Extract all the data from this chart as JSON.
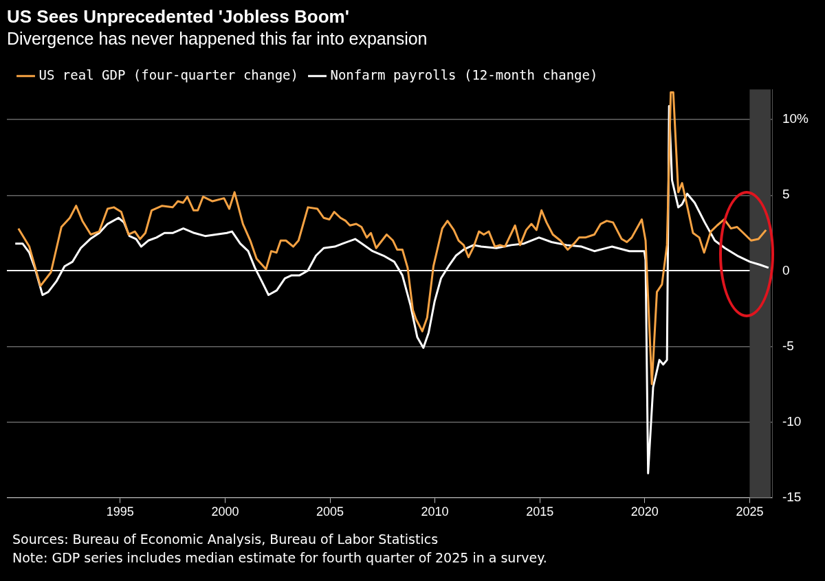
{
  "chart_data": {
    "type": "line",
    "title": "US Sees Unprecedented 'Jobless Boom'",
    "subtitle": "Divergence has never happened this far into expansion",
    "series": [
      {
        "name": "US real GDP (four-quarter change)",
        "color": "#f5a243",
        "x": [
          1990.15,
          1990.67,
          1991.2,
          1991.7,
          1992.2,
          1992.6,
          1992.9,
          1993.2,
          1993.6,
          1994.0,
          1994.4,
          1994.7,
          1995.05,
          1995.4,
          1995.7,
          1995.95,
          1996.2,
          1996.5,
          1997.0,
          1997.5,
          1997.75,
          1998.0,
          1998.2,
          1998.5,
          1998.7,
          1998.95,
          1999.4,
          1999.95,
          2000.2,
          2000.45,
          2000.85,
          2001.2,
          2001.5,
          2001.95,
          2002.2,
          2002.45,
          2002.65,
          2002.9,
          2003.25,
          2003.5,
          2003.95,
          2004.4,
          2004.7,
          2004.97,
          2005.2,
          2005.5,
          2005.75,
          2005.95,
          2006.25,
          2006.5,
          2006.75,
          2006.95,
          2007.2,
          2007.7,
          2008.0,
          2008.2,
          2008.45,
          2008.7,
          2008.95,
          2009.1,
          2009.4,
          2009.63,
          2009.93,
          2010.35,
          2010.6,
          2010.9,
          2011.13,
          2011.37,
          2011.6,
          2011.85,
          2012.1,
          2012.33,
          2012.57,
          2012.86,
          2013.1,
          2013.34,
          2013.82,
          2014.06,
          2014.35,
          2014.6,
          2014.84,
          2015.08,
          2015.32,
          2015.62,
          2015.98,
          2016.33,
          2016.63,
          2016.87,
          2017.17,
          2017.6,
          2017.9,
          2018.19,
          2018.49,
          2018.9,
          2019.15,
          2019.38,
          2019.86,
          2020.04,
          2020.34,
          2020.58,
          2020.82,
          2021.06,
          2021.24,
          2021.36,
          2021.6,
          2021.78,
          2022.02,
          2022.3,
          2022.6,
          2022.83,
          2023.15,
          2023.45,
          2023.79,
          2024.11,
          2024.4,
          2024.7,
          2025.07,
          2025.42,
          2025.78
        ],
        "values": [
          2.8,
          1.6,
          -1.0,
          -0.1,
          2.9,
          3.5,
          4.3,
          3.3,
          2.4,
          2.6,
          4.1,
          4.2,
          3.9,
          2.4,
          2.6,
          2.1,
          2.5,
          4.0,
          4.3,
          4.2,
          4.6,
          4.5,
          4.9,
          4.0,
          4.0,
          4.9,
          4.6,
          4.8,
          4.1,
          5.2,
          3.1,
          2.0,
          0.8,
          0.1,
          1.3,
          1.2,
          2.0,
          2.0,
          1.6,
          2.0,
          4.2,
          4.1,
          3.5,
          3.4,
          3.9,
          3.5,
          3.3,
          3.0,
          3.1,
          2.9,
          2.2,
          2.5,
          1.5,
          2.4,
          2.0,
          1.4,
          1.4,
          0.2,
          -2.6,
          -3.2,
          -4.0,
          -3.1,
          0.3,
          2.8,
          3.3,
          2.7,
          2.0,
          1.7,
          0.9,
          1.6,
          2.6,
          2.4,
          2.6,
          1.6,
          1.7,
          1.6,
          3.0,
          1.7,
          2.7,
          3.1,
          2.7,
          4.0,
          3.2,
          2.4,
          2.0,
          1.4,
          1.8,
          2.2,
          2.2,
          2.4,
          3.1,
          3.3,
          3.2,
          2.1,
          1.9,
          2.2,
          3.4,
          2.0,
          -7.5,
          -1.4,
          -0.9,
          1.7,
          11.8,
          11.8,
          5.2,
          5.8,
          4.3,
          2.5,
          2.2,
          1.2,
          2.6,
          3.0,
          3.4,
          2.8,
          2.9,
          2.5,
          2.0,
          2.1,
          2.7
        ]
      },
      {
        "name": "Nonfarm payrolls (12-month change)",
        "color": "#ffffff",
        "x": [
          1990.0,
          1990.35,
          1990.67,
          1990.93,
          1991.3,
          1991.57,
          1991.96,
          1992.35,
          1992.73,
          1993.12,
          1993.57,
          1994.0,
          1994.4,
          1994.92,
          1995.18,
          1995.44,
          1995.76,
          1996.0,
          1996.34,
          1996.73,
          1997.11,
          1997.5,
          1998.01,
          1998.53,
          1999.05,
          1999.56,
          2000.08,
          2000.33,
          2000.72,
          2001.1,
          2001.42,
          2001.75,
          2002.07,
          2002.46,
          2002.85,
          2003.17,
          2003.55,
          2003.94,
          2004.33,
          2004.7,
          2005.23,
          2005.61,
          2006.2,
          2006.52,
          2007.03,
          2007.55,
          2008.06,
          2008.45,
          2008.84,
          2009.16,
          2009.45,
          2009.7,
          2009.99,
          2010.29,
          2010.65,
          2011.0,
          2011.37,
          2011.84,
          2012.2,
          2012.93,
          2013.64,
          2014.24,
          2014.96,
          2015.56,
          2016.28,
          2016.99,
          2017.6,
          2018.43,
          2019.27,
          2019.98,
          2020.04,
          2020.16,
          2020.4,
          2020.7,
          2020.88,
          2021.06,
          2021.16,
          2021.3,
          2021.6,
          2021.78,
          2022.02,
          2022.38,
          2022.86,
          2023.34,
          2023.82,
          2024.41,
          2025.01,
          2025.49,
          2025.9
        ],
        "values": [
          1.8,
          1.8,
          1.2,
          0.2,
          -1.6,
          -1.4,
          -0.7,
          0.3,
          0.6,
          1.5,
          2.1,
          2.5,
          3.1,
          3.5,
          3.2,
          2.3,
          2.1,
          1.6,
          2.0,
          2.2,
          2.5,
          2.5,
          2.8,
          2.5,
          2.3,
          2.4,
          2.5,
          2.6,
          1.8,
          1.3,
          0.2,
          -0.7,
          -1.6,
          -1.3,
          -0.5,
          -0.3,
          -0.3,
          0.0,
          1.0,
          1.5,
          1.6,
          1.8,
          2.1,
          1.8,
          1.3,
          1.0,
          0.6,
          -0.3,
          -2.3,
          -4.4,
          -5.1,
          -4.1,
          -2.0,
          -0.5,
          0.3,
          1.0,
          1.4,
          1.7,
          1.6,
          1.5,
          1.7,
          1.8,
          2.2,
          1.9,
          1.7,
          1.6,
          1.3,
          1.6,
          1.3,
          1.3,
          0.7,
          -13.4,
          -7.7,
          -5.9,
          -6.2,
          -5.9,
          10.9,
          6.0,
          4.2,
          4.4,
          5.1,
          4.5,
          3.2,
          2.0,
          1.5,
          1.0,
          0.6,
          0.4,
          0.2
        ]
      }
    ],
    "xlim": [
      1989.6,
      2026.1
    ],
    "xticks": [
      1995,
      2000,
      2005,
      2010,
      2015,
      2020,
      2025
    ],
    "ylim": [
      -15,
      12
    ],
    "yticks": [
      -15,
      -10,
      -5,
      0,
      5,
      {
        "value": 10,
        "label": "10%"
      }
    ],
    "grid": "y",
    "legend": "top left",
    "marker": "none",
    "line_style": "solid",
    "bands": [
      {
        "axis": "x",
        "from": 2025,
        "to": 2026,
        "color": "#3a3a3a"
      }
    ],
    "annotations": [
      "Sources: Bureau of Economic Analysis, Bureau of Labor Statistics",
      "Note: GDP series includes median estimate for fourth quarter of 2025 in a survey."
    ]
  }
}
